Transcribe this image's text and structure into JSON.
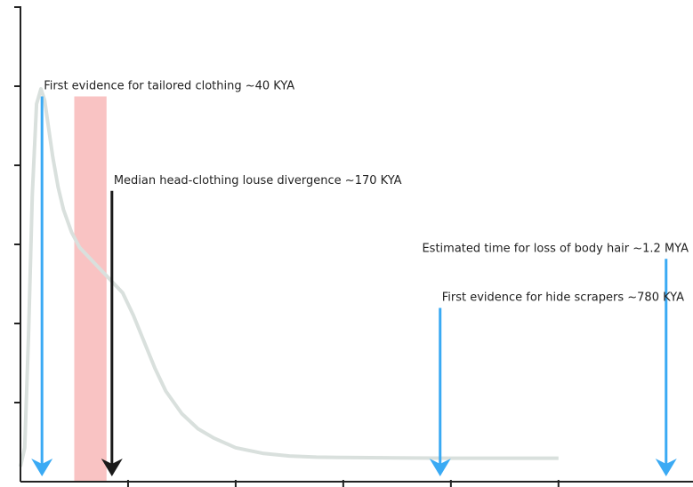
{
  "chart_data": {
    "type": "line",
    "title": "",
    "xlabel": "",
    "ylabel": "",
    "x_unit": "KYA",
    "xlim": [
      0,
      1250
    ],
    "ylim": [
      0,
      1
    ],
    "grid": false,
    "series": [
      {
        "color": "#d9e0dd",
        "x": [
          0,
          8,
          15,
          22,
          30,
          38,
          45,
          52,
          60,
          70,
          80,
          95,
          110,
          130,
          150,
          170,
          190,
          210,
          230,
          250,
          270,
          300,
          330,
          360,
          400,
          450,
          500,
          550,
          600,
          700,
          800,
          900,
          1000
        ],
        "y": [
          0,
          0.05,
          0.35,
          0.72,
          0.96,
          1.0,
          0.97,
          0.9,
          0.82,
          0.74,
          0.68,
          0.62,
          0.58,
          0.55,
          0.52,
          0.49,
          0.46,
          0.4,
          0.33,
          0.26,
          0.2,
          0.14,
          0.1,
          0.075,
          0.05,
          0.035,
          0.028,
          0.025,
          0.024,
          0.023,
          0.022,
          0.022,
          0.022
        ]
      }
    ],
    "shaded_band": {
      "x_start": 100,
      "x_end": 160,
      "y_top": 0.98,
      "color": "#f9c3c3"
    },
    "annotations": [
      {
        "text": "First evidence for tailored clothing ~40 KYA",
        "x": 40,
        "arrow_top": 0.98,
        "color": "#3aaaf4"
      },
      {
        "text": "Median head-clothing louse divergence ~170 KYA",
        "x": 170,
        "arrow_top": 0.73,
        "color": "#1a1a1a"
      },
      {
        "text": "First evidence for hide scrapers ~780 KYA",
        "x": 780,
        "arrow_top": 0.42,
        "color": "#3aaaf4"
      },
      {
        "text": "Estimated time for loss of body hair ~1.2 MYA",
        "x": 1200,
        "arrow_top": 0.55,
        "color": "#3aaaf4"
      }
    ],
    "x_ticks": [
      200,
      400,
      600,
      800,
      1000
    ],
    "y_tick_count": 6
  }
}
